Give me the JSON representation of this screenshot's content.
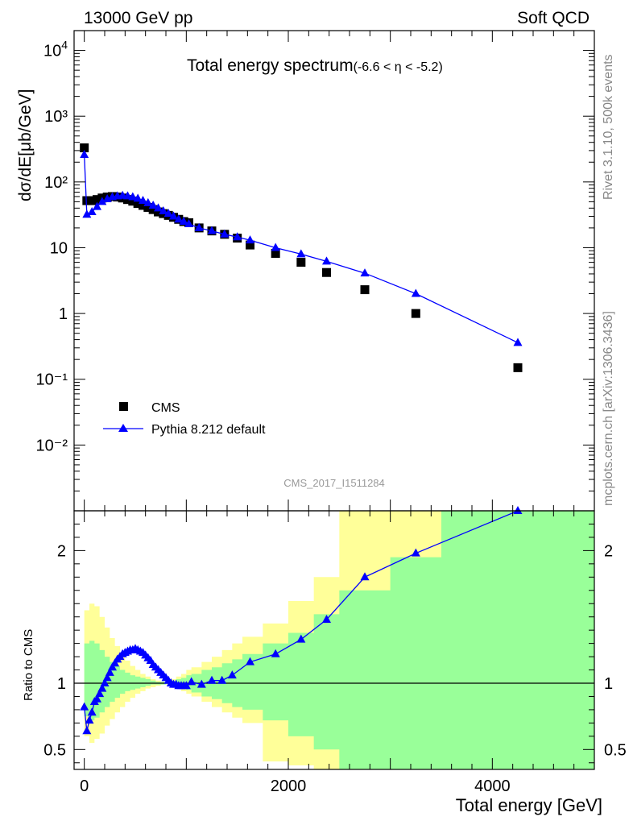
{
  "header": {
    "left": "13000 GeV pp",
    "right": "Soft QCD"
  },
  "side_labels": {
    "rivet": "Rivet 3.1.10,  500k events",
    "mcplots": "mcplots.cern.ch [arXiv:1306.3436]"
  },
  "chart_data": [
    {
      "type": "scatter",
      "title": "Total energy spectrum",
      "title_suffix": "(-6.6 < η < -5.2)",
      "ylabel": "dσ/dE[μb/GeV]",
      "yscale": "log",
      "ylim": [
        0.001,
        20000
      ],
      "xlim": [
        -100,
        5000
      ],
      "watermark": "CMS_2017_I1511284",
      "ytick_labels": [
        "10⁴",
        "10³",
        "10²",
        "10",
        "1",
        "10⁻¹",
        "10⁻²"
      ],
      "legend": {
        "position": "lower-left",
        "entries": [
          "CMS",
          "Pythia 8.212 default"
        ]
      },
      "series": [
        {
          "name": "CMS",
          "marker": "square",
          "color": "#000000",
          "x": [
            0,
            25,
            75,
            125,
            175,
            225,
            275,
            325,
            375,
            425,
            475,
            525,
            575,
            625,
            675,
            725,
            775,
            825,
            875,
            925,
            975,
            1025,
            1125,
            1250,
            1375,
            1500,
            1625,
            1875,
            2125,
            2375,
            2750,
            3250,
            4250
          ],
          "y": [
            330,
            52,
            52,
            54,
            57,
            59,
            60,
            59,
            57,
            54,
            51,
            47,
            44,
            41,
            38,
            35,
            33,
            31,
            29,
            27,
            25,
            24,
            20,
            18,
            16,
            14,
            11,
            8.2,
            6.0,
            4.2,
            2.3,
            1.0,
            0.15
          ]
        },
        {
          "name": "Pythia 8.212 default",
          "marker": "triangle",
          "color": "#0000ff",
          "x": [
            0,
            25,
            75,
            125,
            175,
            225,
            275,
            325,
            375,
            425,
            475,
            525,
            575,
            625,
            675,
            725,
            775,
            825,
            875,
            925,
            975,
            1025,
            1125,
            1250,
            1375,
            1500,
            1625,
            1875,
            2125,
            2375,
            2750,
            3250,
            4250
          ],
          "y": [
            260,
            32,
            35,
            42,
            50,
            55,
            59,
            61,
            62,
            61,
            59,
            56,
            52,
            48,
            44,
            40,
            36,
            33,
            30,
            27,
            25,
            23,
            20,
            18,
            16,
            14.5,
            13,
            10,
            8.0,
            6.2,
            4.1,
            2.0,
            0.36
          ]
        }
      ]
    },
    {
      "type": "line",
      "ylabel": "Ratio to CMS",
      "ylim": [
        0.35,
        2.3
      ],
      "xlabel": "Total energy [GeV]",
      "xtick_labels": [
        "0",
        "2000",
        "4000"
      ],
      "ytick_labels": [
        "0.5",
        "1",
        "2"
      ],
      "reference_line": 1,
      "bands": {
        "edges": [
          0,
          50,
          100,
          150,
          200,
          250,
          300,
          350,
          400,
          450,
          500,
          550,
          600,
          650,
          700,
          750,
          800,
          850,
          900,
          950,
          1000,
          1050,
          1150,
          1250,
          1350,
          1450,
          1550,
          1750,
          2000,
          2250,
          2500,
          3000,
          3500,
          5000
        ],
        "yellow_lo": [
          0.6,
          0.55,
          0.58,
          0.62,
          0.68,
          0.73,
          0.78,
          0.82,
          0.86,
          0.89,
          0.92,
          0.94,
          0.96,
          0.97,
          0.98,
          0.99,
          0.99,
          0.98,
          0.96,
          0.94,
          0.92,
          0.9,
          0.86,
          0.82,
          0.78,
          0.74,
          0.7,
          0.41,
          0.38,
          0.35,
          0.35,
          0.35,
          0.35
        ],
        "yellow_hi": [
          1.55,
          1.6,
          1.58,
          1.5,
          1.42,
          1.34,
          1.28,
          1.22,
          1.17,
          1.13,
          1.1,
          1.07,
          1.05,
          1.03,
          1.02,
          1.01,
          1.01,
          1.03,
          1.05,
          1.07,
          1.1,
          1.12,
          1.16,
          1.2,
          1.25,
          1.3,
          1.35,
          1.45,
          1.62,
          1.8,
          2.3,
          2.3,
          2.3
        ],
        "green_lo": [
          0.75,
          0.72,
          0.74,
          0.78,
          0.82,
          0.86,
          0.89,
          0.92,
          0.94,
          0.95,
          0.96,
          0.97,
          0.98,
          0.99,
          0.99,
          0.99,
          1.0,
          0.99,
          0.98,
          0.97,
          0.95,
          0.93,
          0.9,
          0.88,
          0.85,
          0.82,
          0.8,
          0.72,
          0.6,
          0.5,
          0.35,
          0.35,
          0.35
        ],
        "green_hi": [
          1.3,
          1.32,
          1.3,
          1.25,
          1.2,
          1.16,
          1.13,
          1.1,
          1.08,
          1.06,
          1.05,
          1.04,
          1.03,
          1.02,
          1.01,
          1.01,
          1.01,
          1.02,
          1.03,
          1.04,
          1.06,
          1.07,
          1.1,
          1.12,
          1.15,
          1.18,
          1.22,
          1.3,
          1.38,
          1.52,
          1.7,
          1.95,
          2.3
        ]
      },
      "series": [
        {
          "name": "Pythia 8.212 default",
          "color": "#0000ff",
          "x": [
            0,
            25,
            50,
            75,
            100,
            125,
            150,
            175,
            200,
            225,
            250,
            275,
            300,
            325,
            350,
            375,
            400,
            425,
            450,
            475,
            500,
            525,
            550,
            575,
            600,
            625,
            650,
            675,
            700,
            725,
            750,
            775,
            800,
            825,
            850,
            875,
            900,
            925,
            950,
            975,
            1000,
            1050,
            1150,
            1250,
            1350,
            1450,
            1625,
            1875,
            2125,
            2375,
            2750,
            3250,
            4250
          ],
          "y": [
            0.82,
            0.64,
            0.72,
            0.78,
            0.86,
            0.88,
            0.92,
            0.96,
            1.0,
            1.04,
            1.08,
            1.12,
            1.15,
            1.18,
            1.2,
            1.22,
            1.23,
            1.24,
            1.25,
            1.25,
            1.26,
            1.25,
            1.24,
            1.23,
            1.21,
            1.19,
            1.17,
            1.14,
            1.12,
            1.1,
            1.08,
            1.06,
            1.04,
            1.02,
            1.0,
            0.99,
            0.99,
            0.98,
            0.98,
            0.98,
            0.98,
            1.01,
            0.99,
            1.02,
            1.02,
            1.06,
            1.16,
            1.22,
            1.33,
            1.48,
            1.8,
            1.98,
            2.45
          ]
        }
      ]
    }
  ]
}
